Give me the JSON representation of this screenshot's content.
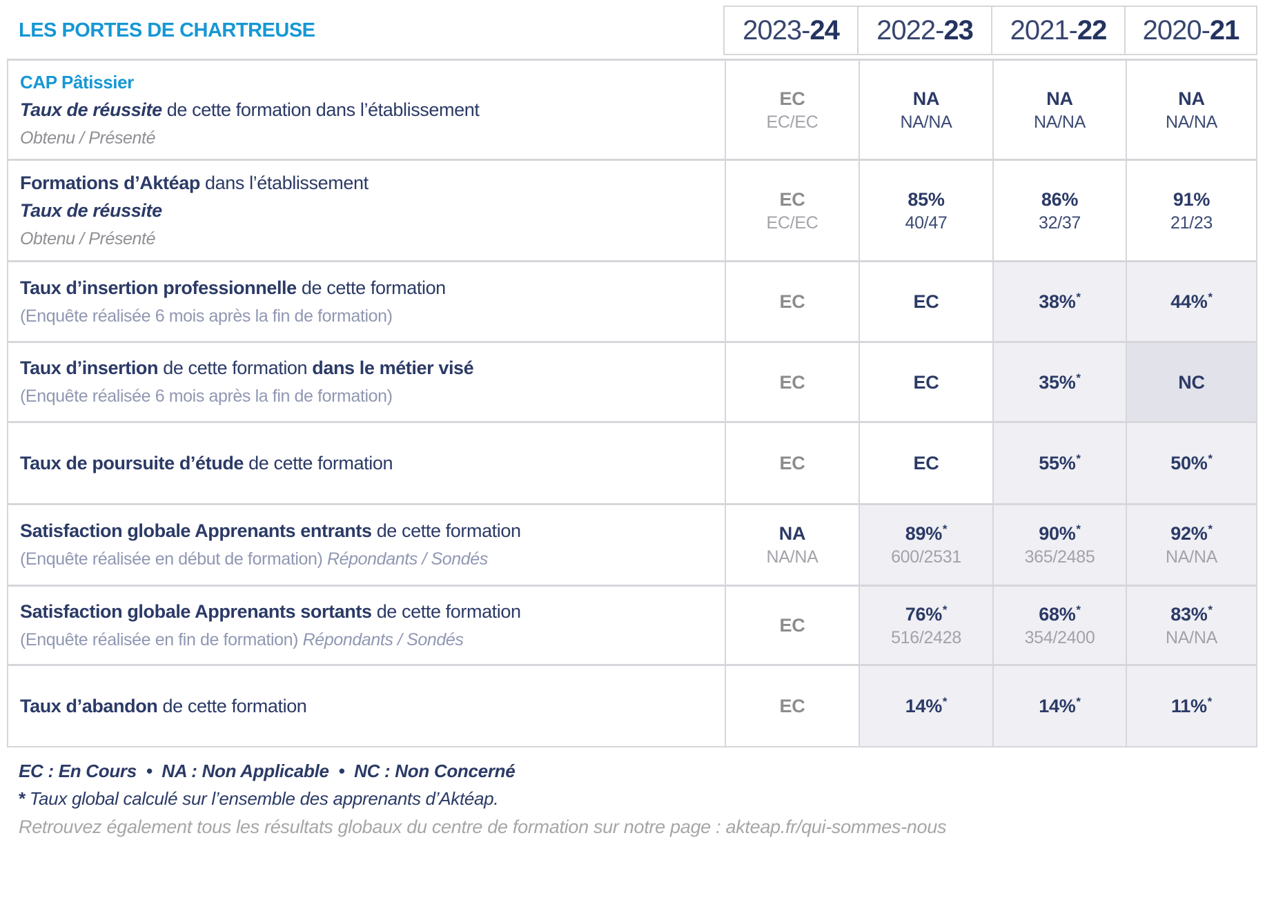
{
  "title": "LES PORTES DE CHARTREUSE",
  "years": [
    {
      "prefix": "2023-",
      "suffix": "24"
    },
    {
      "prefix": "2022-",
      "suffix": "23"
    },
    {
      "prefix": "2021-",
      "suffix": "22"
    },
    {
      "prefix": "2020-",
      "suffix": "21"
    }
  ],
  "rows": [
    {
      "label_lines": [
        {
          "segments": [
            {
              "text": "CAP Pâtissier",
              "style": "blue-bold"
            }
          ]
        },
        {
          "segments": [
            {
              "text": "Taux de réussite",
              "style": "bold-italic"
            },
            {
              "text": " de cette formation dans l’établissement",
              "style": "regular"
            }
          ]
        },
        {
          "segments": [
            {
              "text": "Obtenu / Présenté",
              "style": "muted-italic"
            }
          ]
        }
      ],
      "cells": [
        {
          "main": "EC",
          "main_style": "gray",
          "sub": "EC/EC",
          "sub_style": "gray",
          "bg": "white",
          "star": false
        },
        {
          "main": "NA",
          "main_style": "navy",
          "sub": "NA/NA",
          "sub_style": "navy",
          "bg": "white",
          "star": false
        },
        {
          "main": "NA",
          "main_style": "navy",
          "sub": "NA/NA",
          "sub_style": "navy",
          "bg": "white",
          "star": false
        },
        {
          "main": "NA",
          "main_style": "navy",
          "sub": "NA/NA",
          "sub_style": "navy",
          "bg": "white",
          "star": false
        }
      ]
    },
    {
      "label_lines": [
        {
          "segments": [
            {
              "text": "Formations d’Aktéap",
              "style": "bold"
            },
            {
              "text": " dans l’établissement",
              "style": "regular"
            }
          ]
        },
        {
          "segments": [
            {
              "text": "Taux de réussite",
              "style": "bold-italic"
            }
          ]
        },
        {
          "segments": [
            {
              "text": "Obtenu / Présenté",
              "style": "muted-italic"
            }
          ]
        }
      ],
      "cells": [
        {
          "main": "EC",
          "main_style": "gray",
          "sub": "EC/EC",
          "sub_style": "gray",
          "bg": "white",
          "star": false
        },
        {
          "main": "85%",
          "main_style": "navy",
          "sub": "40/47",
          "sub_style": "navy",
          "bg": "white",
          "star": false
        },
        {
          "main": "86%",
          "main_style": "navy",
          "sub": "32/37",
          "sub_style": "navy",
          "bg": "white",
          "star": false
        },
        {
          "main": "91%",
          "main_style": "navy",
          "sub": "21/23",
          "sub_style": "navy",
          "bg": "white",
          "star": false
        }
      ]
    },
    {
      "label_lines": [
        {
          "segments": [
            {
              "text": "Taux d’insertion professionnelle",
              "style": "bold"
            },
            {
              "text": " de cette formation",
              "style": "regular"
            }
          ]
        },
        {
          "segments": [
            {
              "text": "(Enquête réalisée 6 mois après la fin de formation)",
              "style": "note"
            }
          ]
        }
      ],
      "cells": [
        {
          "main": "EC",
          "main_style": "gray",
          "sub": null,
          "sub_style": null,
          "bg": "white",
          "star": false
        },
        {
          "main": "EC",
          "main_style": "navy",
          "sub": null,
          "sub_style": null,
          "bg": "white",
          "star": false
        },
        {
          "main": "38%",
          "main_style": "navy",
          "sub": null,
          "sub_style": null,
          "bg": "lav",
          "star": true
        },
        {
          "main": "44%",
          "main_style": "navy",
          "sub": null,
          "sub_style": null,
          "bg": "lav",
          "star": true
        }
      ]
    },
    {
      "label_lines": [
        {
          "segments": [
            {
              "text": "Taux d’insertion",
              "style": "bold"
            },
            {
              "text": " de cette formation ",
              "style": "regular"
            },
            {
              "text": "dans le métier visé",
              "style": "bold"
            }
          ]
        },
        {
          "segments": [
            {
              "text": "(Enquête réalisée 6 mois après la fin de formation)",
              "style": "note"
            }
          ]
        }
      ],
      "cells": [
        {
          "main": "EC",
          "main_style": "gray",
          "sub": null,
          "sub_style": null,
          "bg": "white",
          "star": false
        },
        {
          "main": "EC",
          "main_style": "navy",
          "sub": null,
          "sub_style": null,
          "bg": "white",
          "star": false
        },
        {
          "main": "35%",
          "main_style": "navy",
          "sub": null,
          "sub_style": null,
          "bg": "lav",
          "star": true
        },
        {
          "main": "NC",
          "main_style": "navy",
          "sub": null,
          "sub_style": null,
          "bg": "lav2",
          "star": false
        }
      ]
    },
    {
      "label_lines": [
        {
          "segments": [
            {
              "text": "Taux de poursuite d’étude",
              "style": "bold"
            },
            {
              "text": " de cette formation",
              "style": "regular"
            }
          ]
        }
      ],
      "cells": [
        {
          "main": "EC",
          "main_style": "gray",
          "sub": null,
          "sub_style": null,
          "bg": "white",
          "star": false
        },
        {
          "main": "EC",
          "main_style": "navy",
          "sub": null,
          "sub_style": null,
          "bg": "white",
          "star": false
        },
        {
          "main": "55%",
          "main_style": "navy",
          "sub": null,
          "sub_style": null,
          "bg": "lav",
          "star": true
        },
        {
          "main": "50%",
          "main_style": "navy",
          "sub": null,
          "sub_style": null,
          "bg": "lav",
          "star": true
        }
      ]
    },
    {
      "label_lines": [
        {
          "segments": [
            {
              "text": "Satisfaction globale Apprenants entrants",
              "style": "bold"
            },
            {
              "text": " de cette formation",
              "style": "regular"
            }
          ]
        },
        {
          "segments": [
            {
              "text": "(Enquête réalisée en début de formation) ",
              "style": "note"
            },
            {
              "text": "Répondants / Sondés",
              "style": "note-italic"
            }
          ]
        }
      ],
      "cells": [
        {
          "main": "NA",
          "main_style": "navy",
          "sub": "NA/NA",
          "sub_style": "gray",
          "bg": "white",
          "star": false
        },
        {
          "main": "89%",
          "main_style": "navy",
          "sub": "600/2531",
          "sub_style": "gray",
          "bg": "lav",
          "star": true
        },
        {
          "main": "90%",
          "main_style": "navy",
          "sub": "365/2485",
          "sub_style": "gray",
          "bg": "lav",
          "star": true
        },
        {
          "main": "92%",
          "main_style": "navy",
          "sub": "NA/NA",
          "sub_style": "gray",
          "bg": "lav",
          "star": true
        }
      ]
    },
    {
      "label_lines": [
        {
          "segments": [
            {
              "text": "Satisfaction globale Apprenants sortants",
              "style": "bold"
            },
            {
              "text": " de cette formation",
              "style": "regular"
            }
          ]
        },
        {
          "segments": [
            {
              "text": "(Enquête réalisée en fin de formation) ",
              "style": "note"
            },
            {
              "text": "Répondants / Sondés",
              "style": "note-italic"
            }
          ]
        }
      ],
      "cells": [
        {
          "main": "EC",
          "main_style": "gray",
          "sub": null,
          "sub_style": null,
          "bg": "white",
          "star": false
        },
        {
          "main": "76%",
          "main_style": "navy",
          "sub": "516/2428",
          "sub_style": "gray",
          "bg": "lav",
          "star": true
        },
        {
          "main": "68%",
          "main_style": "navy",
          "sub": "354/2400",
          "sub_style": "gray",
          "bg": "lav",
          "star": true
        },
        {
          "main": "83%",
          "main_style": "navy",
          "sub": "NA/NA",
          "sub_style": "gray",
          "bg": "lav",
          "star": true
        }
      ]
    },
    {
      "label_lines": [
        {
          "segments": [
            {
              "text": "Taux d’abandon",
              "style": "bold"
            },
            {
              "text": " de cette formation",
              "style": "regular"
            }
          ]
        }
      ],
      "cells": [
        {
          "main": "EC",
          "main_style": "gray",
          "sub": null,
          "sub_style": null,
          "bg": "white",
          "star": false
        },
        {
          "main": "14%",
          "main_style": "navy",
          "sub": null,
          "sub_style": null,
          "bg": "lav",
          "star": true
        },
        {
          "main": "14%",
          "main_style": "navy",
          "sub": null,
          "sub_style": null,
          "bg": "lav",
          "star": true
        },
        {
          "main": "11%",
          "main_style": "navy",
          "sub": null,
          "sub_style": null,
          "bg": "lav",
          "star": true
        }
      ]
    }
  ],
  "footer": {
    "legend": "EC : En Cours  •  NA : Non Applicable  •  NC : Non Concerné",
    "star": "*",
    "note": "Taux global calculé sur l’ensemble des apprenants d’Aktéap.",
    "link_line": "Retrouvez également tous les résultats globaux du centre de formation sur notre page : akteap.fr/qui-sommes-nous"
  },
  "colors": {
    "accent_blue": "#1697d4",
    "navy": "#2b3a66",
    "ec_gray": "#8c8c8c",
    "sub_gray": "#a2a2aa",
    "note_blue_gray": "#9097b2",
    "row_highlight": "#efeff4",
    "row_highlight_dark": "#e2e2eb",
    "border": "#d6d6db"
  }
}
